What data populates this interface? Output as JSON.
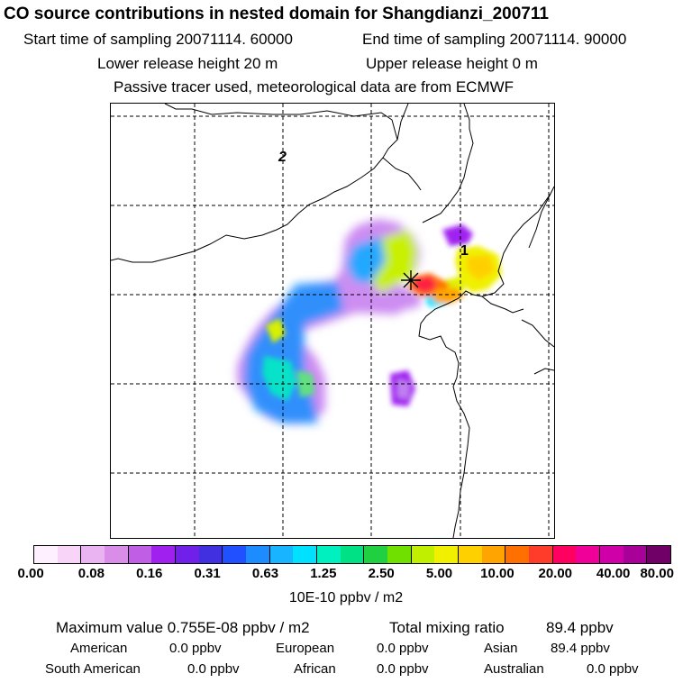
{
  "header": {
    "title": "CO  source contributions in nested domain for Shangdianzi_200711",
    "start_time": "Start time of sampling 20071114. 60000",
    "end_time": "End time of sampling 20071114. 90000",
    "lower_height": "Lower release height   20 m",
    "upper_height": "Upper release height    0 m",
    "tracer_note": "Passive tracer used, meteorological data are from ECMWF"
  },
  "map": {
    "labels": {
      "label_1": "1",
      "label_2": "2"
    },
    "receptor_marker_icon": "x-star-icon"
  },
  "colorbar": {
    "colors": [
      "#fff0ff",
      "#f8d4f8",
      "#eab4f2",
      "#d98ce8",
      "#c05ee6",
      "#a020f0",
      "#7020e8",
      "#4030e0",
      "#2050ff",
      "#1c8cff",
      "#18b4ff",
      "#00e0ff",
      "#00f0c0",
      "#00e084",
      "#20d040",
      "#70e000",
      "#c0f000",
      "#f0f000",
      "#ffd000",
      "#ffa400",
      "#ff7000",
      "#ff3c2a",
      "#ff0060",
      "#f00098",
      "#d000a8",
      "#a80098",
      "#700068"
    ],
    "tick_labels": [
      "0.00",
      "0.08",
      "0.16",
      "0.31",
      "0.63",
      "1.25",
      "2.50",
      "5.00",
      "10.00",
      "20.00",
      "40.00",
      "80.00"
    ],
    "units": "10E-10 ppbv / m2"
  },
  "stats": {
    "max_value": "Maximum value  0.755E-08 ppbv / m2",
    "total_mixing": "Total mixing ratio",
    "total_value": "89.4 ppbv"
  },
  "regions": {
    "american_label": "American",
    "american_value": "0.0 ppbv",
    "european_label": "European",
    "european_value": "0.0 ppbv",
    "asian_label": "Asian",
    "asian_value": "89.4 ppbv",
    "south_american_label": "South American",
    "south_american_value": "0.0 ppbv",
    "african_label": "African",
    "african_value": "0.0 ppbv",
    "australian_label": "Australian",
    "australian_value": "0.0 ppbv"
  }
}
